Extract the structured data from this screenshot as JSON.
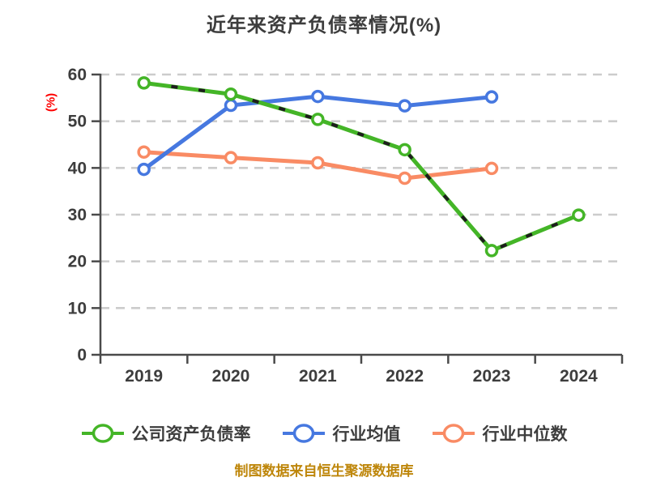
{
  "title": "近年来资产负债率情况(%)",
  "y_axis_label": "(%)",
  "footer": "制图数据来自恒生聚源数据库",
  "colors": {
    "title_text": "#3d3d3d",
    "tick_text": "#3d3d3d",
    "axis": "#4a4a4a",
    "grid": "#cccccc",
    "y_label_red": "#fe0000",
    "footer_gold": "#be860a",
    "series_green": "#44b527",
    "series_blue": "#4678e0",
    "series_orange": "#f98b64"
  },
  "chart_data": {
    "type": "line",
    "title": "近年来资产负债率情况(%)",
    "xlabel": "",
    "ylabel": "(%)",
    "categories": [
      "2019",
      "2020",
      "2021",
      "2022",
      "2023",
      "2024"
    ],
    "series": [
      {
        "name": "公司资产负债率",
        "color": "#44b527",
        "marker": "circle-white-fill",
        "dash_overlay": true,
        "dash_overlay_color": "#1d1d1d",
        "values": [
          58.2,
          55.8,
          50.4,
          43.9,
          22.3,
          29.9
        ]
      },
      {
        "name": "行业均值",
        "color": "#4678e0",
        "marker": "circle-white-fill",
        "dash_overlay": false,
        "values": [
          39.7,
          53.4,
          55.3,
          53.3,
          55.2,
          null
        ]
      },
      {
        "name": "行业中位数",
        "color": "#f98b64",
        "marker": "circle-white-fill",
        "dash_overlay": false,
        "values": [
          43.4,
          42.2,
          41.1,
          37.8,
          39.9,
          null
        ]
      }
    ],
    "ylim": [
      0,
      60
    ],
    "yticks": [
      0,
      10,
      20,
      30,
      40,
      50,
      60
    ],
    "grid": "horizontal-dashed",
    "legend_position": "bottom"
  }
}
